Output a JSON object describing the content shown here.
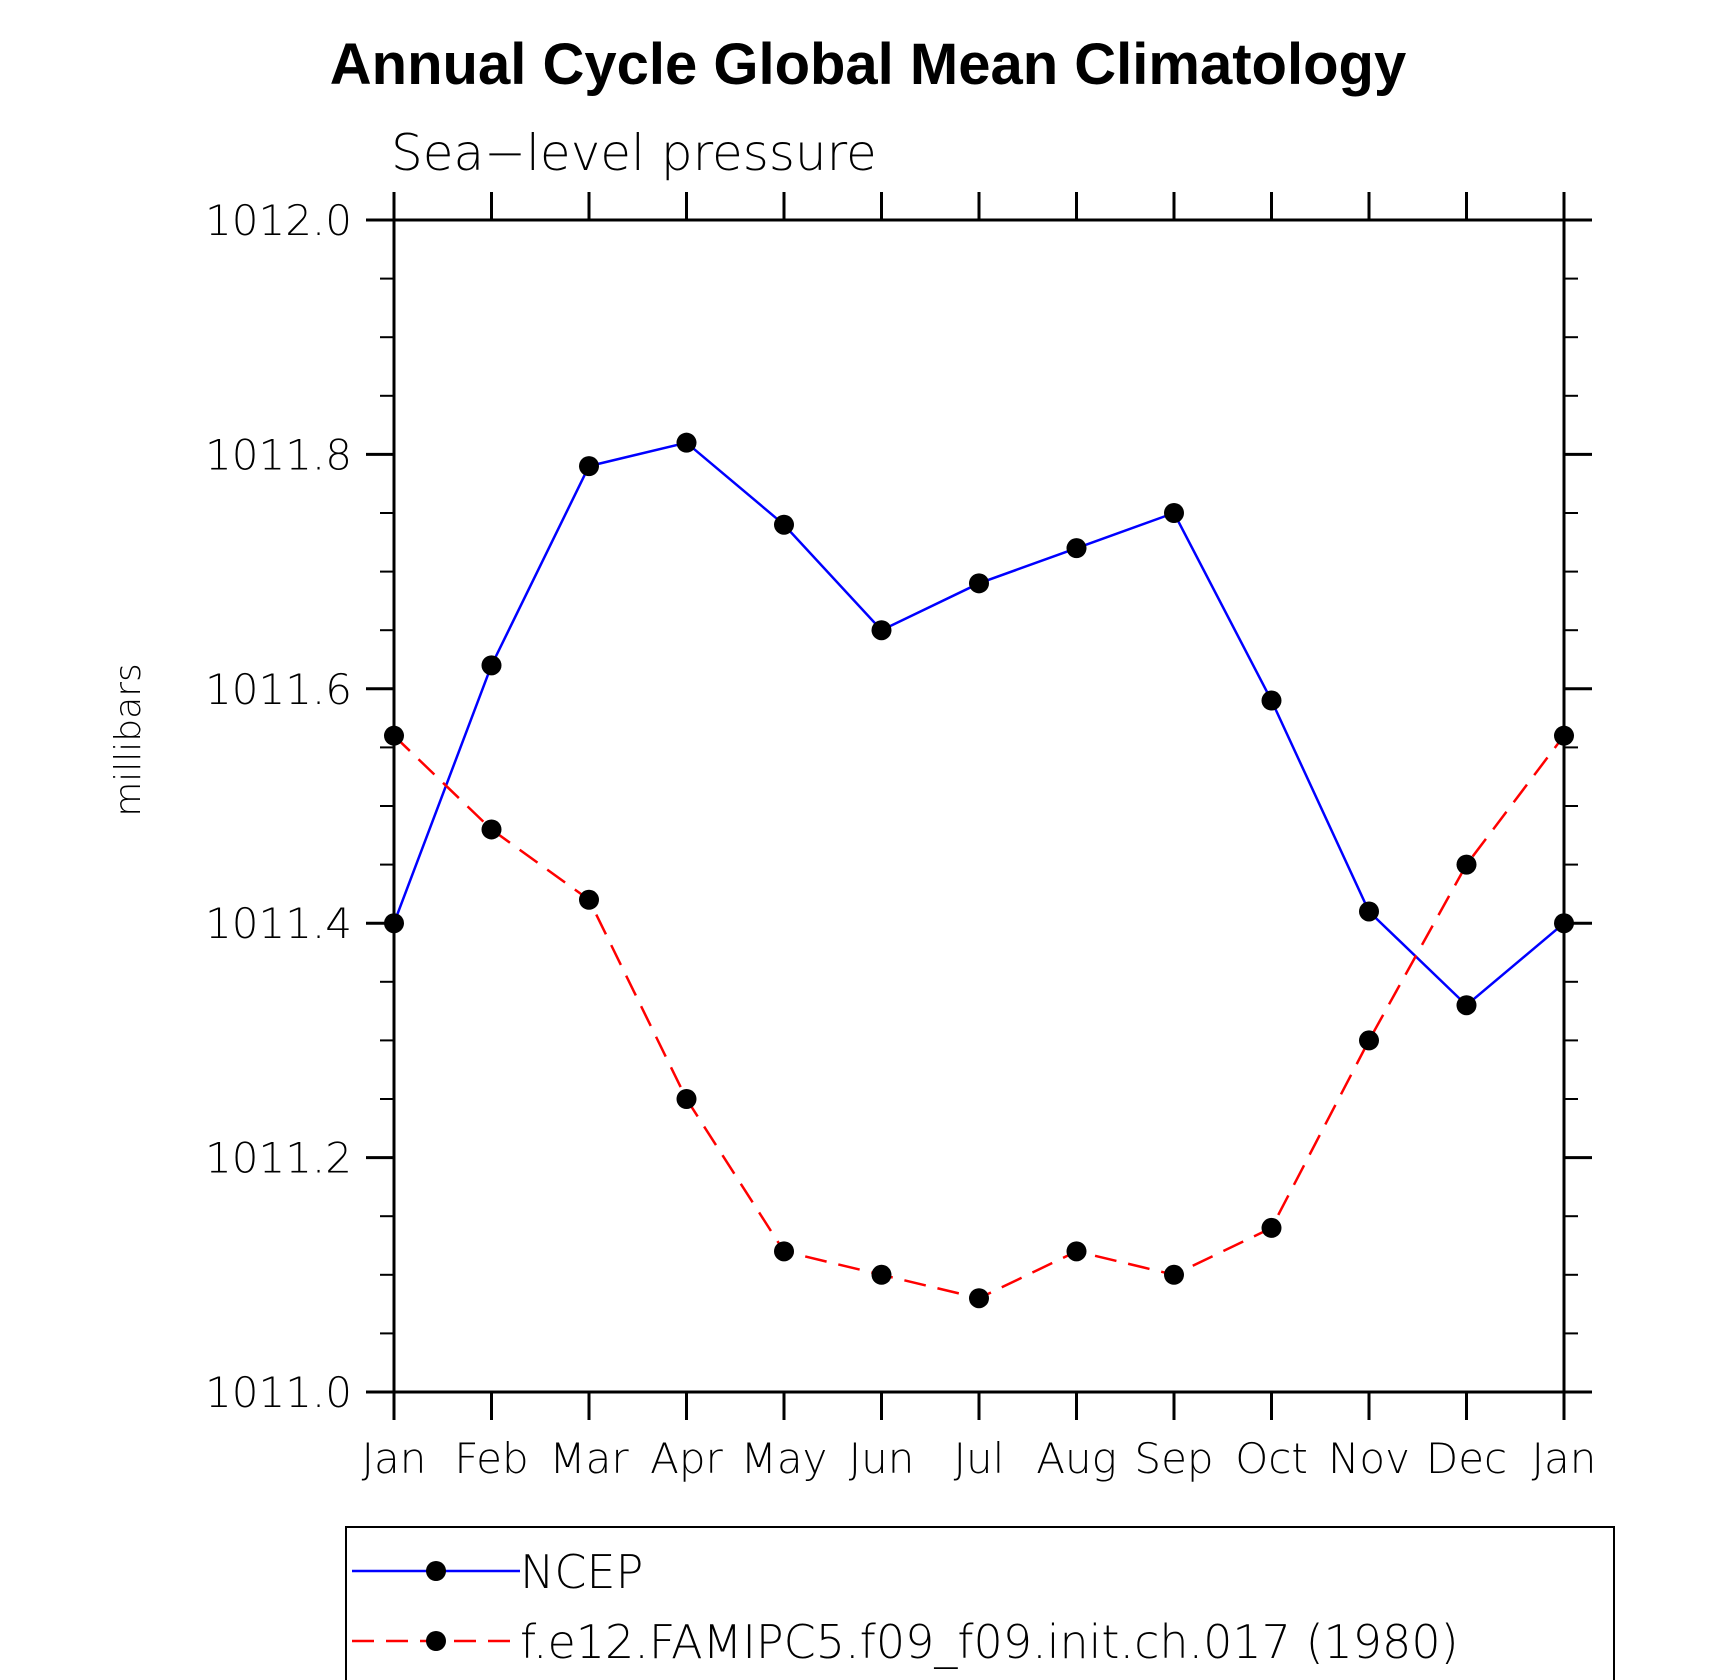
{
  "chart_data": {
    "type": "line",
    "title": "Annual Cycle Global Mean Climatology",
    "subtitle": "Sea−level pressure",
    "ylabel": "millibars",
    "xlabel": "",
    "categories": [
      "Jan",
      "Feb",
      "Mar",
      "Apr",
      "May",
      "Jun",
      "Jul",
      "Aug",
      "Sep",
      "Oct",
      "Nov",
      "Dec",
      "Jan"
    ],
    "ylim": [
      1011.0,
      1012.0
    ],
    "yticks": [
      "1011.0",
      "1011.2",
      "1011.4",
      "1011.6",
      "1011.8",
      "1012.0"
    ],
    "ytick_values": [
      1011.0,
      1011.2,
      1011.4,
      1011.6,
      1011.8,
      1012.0
    ],
    "minor_step": 0.05,
    "grid": false,
    "legend_position": "bottom",
    "series": [
      {
        "name": "NCEP",
        "color": "#0000ff",
        "style": "solid",
        "marker": "circle",
        "values": [
          1011.4,
          1011.62,
          1011.79,
          1011.81,
          1011.74,
          1011.65,
          1011.69,
          1011.72,
          1011.75,
          1011.59,
          1011.41,
          1011.33,
          1011.4
        ]
      },
      {
        "name": "f.e12.FAMIPC5.f09_f09.init.ch.017 (1980)",
        "color": "#ff0000",
        "style": "dashed",
        "marker": "circle",
        "values": [
          1011.56,
          1011.48,
          1011.42,
          1011.25,
          1011.12,
          1011.1,
          1011.08,
          1011.12,
          1011.1,
          1011.14,
          1011.3,
          1011.45,
          1011.56
        ]
      }
    ]
  }
}
